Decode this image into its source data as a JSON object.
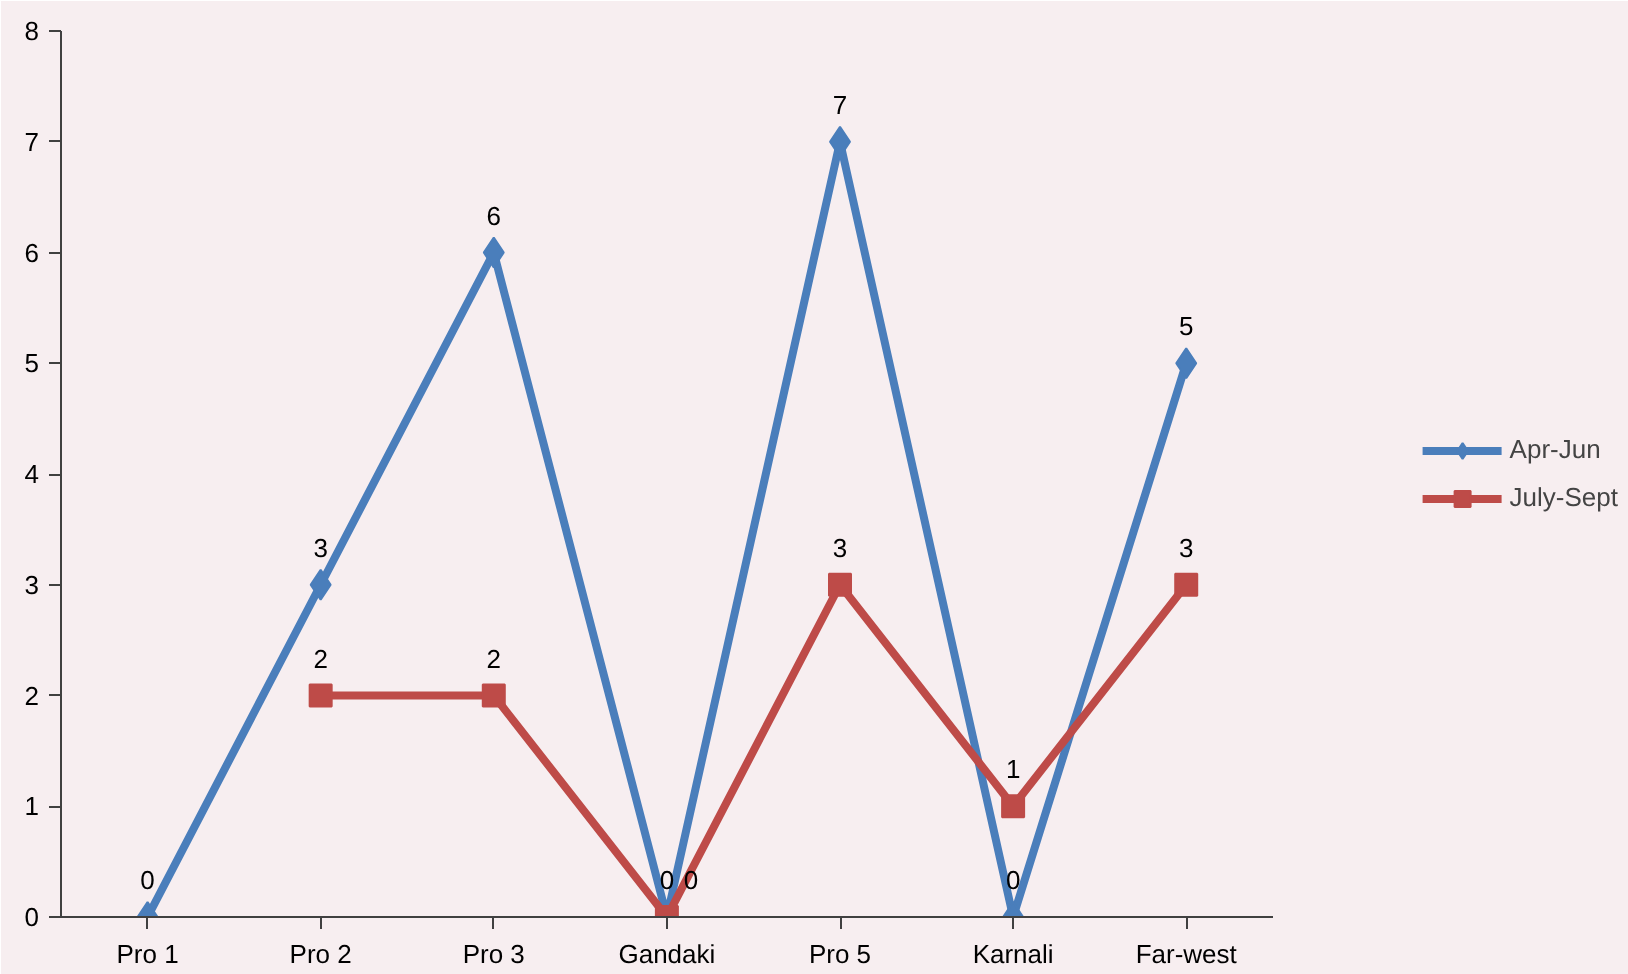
{
  "chart_data": {
    "type": "line",
    "categories": [
      "Pro 1",
      "Pro 2",
      "Pro 3",
      "Gandaki",
      "Pro 5",
      "Karnali",
      "Far-west"
    ],
    "series": [
      {
        "name": "Apr-Jun",
        "color": "#4a7ebb",
        "marker": "diamond",
        "values": [
          0,
          3,
          6,
          0,
          7,
          0,
          5
        ]
      },
      {
        "name": "July-Sept",
        "color": "#be4b48",
        "marker": "square",
        "values": [
          null,
          2,
          2,
          0,
          3,
          1,
          3
        ]
      }
    ],
    "ylim": [
      0,
      8
    ],
    "yticks": [
      0,
      1,
      2,
      3,
      4,
      5,
      6,
      7,
      8
    ],
    "grid": false,
    "legend": "right",
    "data_labels": true,
    "line_style": "solid"
  }
}
